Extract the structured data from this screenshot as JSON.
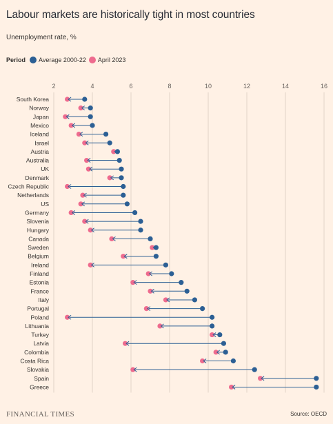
{
  "title": "Labour markets are historically tight in most countries",
  "subtitle": "Unemployment rate, %",
  "legend": {
    "label": "Period",
    "items": [
      {
        "name": "Average 2000-22",
        "color": "#2c5f94"
      },
      {
        "name": "April 2023",
        "color": "#ee6b8e"
      }
    ]
  },
  "footer": {
    "brand": "FINANCIAL TIMES",
    "source": "Source: OECD"
  },
  "chart_data": {
    "type": "dumbbell",
    "title": "Labour markets are historically tight in most countries",
    "subtitle": "Unemployment rate, %",
    "xlim": [
      2,
      16
    ],
    "xticks": [
      "2",
      "4",
      "6",
      "8",
      "10",
      "12",
      "14",
      "16"
    ],
    "grid": true,
    "series": [
      {
        "name": "Average 2000-22",
        "color": "#2c5f94"
      },
      {
        "name": "April 2023",
        "color": "#ee6b8e"
      }
    ],
    "rows": [
      {
        "country": "South Korea",
        "avg": 3.6,
        "apr2023": 2.7
      },
      {
        "country": "Norway",
        "avg": 3.9,
        "apr2023": 3.4
      },
      {
        "country": "Japan",
        "avg": 3.9,
        "apr2023": 2.6
      },
      {
        "country": "Mexico",
        "avg": 4.0,
        "apr2023": 2.9
      },
      {
        "country": "Iceland",
        "avg": 4.7,
        "apr2023": 3.3
      },
      {
        "country": "Israel",
        "avg": 4.9,
        "apr2023": 3.6
      },
      {
        "country": "Austria",
        "avg": 5.3,
        "apr2023": 5.1
      },
      {
        "country": "Australia",
        "avg": 5.4,
        "apr2023": 3.7
      },
      {
        "country": "UK",
        "avg": 5.5,
        "apr2023": 3.8
      },
      {
        "country": "Denmark",
        "avg": 5.5,
        "apr2023": 4.9
      },
      {
        "country": "Czech Republic",
        "avg": 5.6,
        "apr2023": 2.7
      },
      {
        "country": "Netherlands",
        "avg": 5.6,
        "apr2023": 3.5
      },
      {
        "country": "US",
        "avg": 5.8,
        "apr2023": 3.4
      },
      {
        "country": "Germany",
        "avg": 6.2,
        "apr2023": 2.9
      },
      {
        "country": "Slovenia",
        "avg": 6.5,
        "apr2023": 3.6
      },
      {
        "country": "Hungary",
        "avg": 6.5,
        "apr2023": 3.9
      },
      {
        "country": "Canada",
        "avg": 7.0,
        "apr2023": 5.0
      },
      {
        "country": "Sweden",
        "avg": 7.3,
        "apr2023": 7.1
      },
      {
        "country": "Belgium",
        "avg": 7.3,
        "apr2023": 5.6
      },
      {
        "country": "Ireland",
        "avg": 7.8,
        "apr2023": 3.9
      },
      {
        "country": "Finland",
        "avg": 8.1,
        "apr2023": 6.9
      },
      {
        "country": "Estonia",
        "avg": 8.6,
        "apr2023": 6.1
      },
      {
        "country": "France",
        "avg": 8.9,
        "apr2023": 7.0
      },
      {
        "country": "Italy",
        "avg": 9.3,
        "apr2023": 7.8
      },
      {
        "country": "Portugal",
        "avg": 9.7,
        "apr2023": 6.8
      },
      {
        "country": "Poland",
        "avg": 10.2,
        "apr2023": 2.7
      },
      {
        "country": "Lithuania",
        "avg": 10.2,
        "apr2023": 7.5
      },
      {
        "country": "Turkey",
        "avg": 10.6,
        "apr2023": 10.2
      },
      {
        "country": "Latvia",
        "avg": 10.8,
        "apr2023": 5.7
      },
      {
        "country": "Colombia",
        "avg": 10.9,
        "apr2023": 10.4
      },
      {
        "country": "Costa Rica",
        "avg": 11.3,
        "apr2023": 9.7
      },
      {
        "country": "Slovakia",
        "avg": 12.4,
        "apr2023": 6.1
      },
      {
        "country": "Spain",
        "avg": 15.6,
        "apr2023": 12.7
      },
      {
        "country": "Greece",
        "avg": 15.6,
        "apr2023": 11.2
      }
    ]
  }
}
